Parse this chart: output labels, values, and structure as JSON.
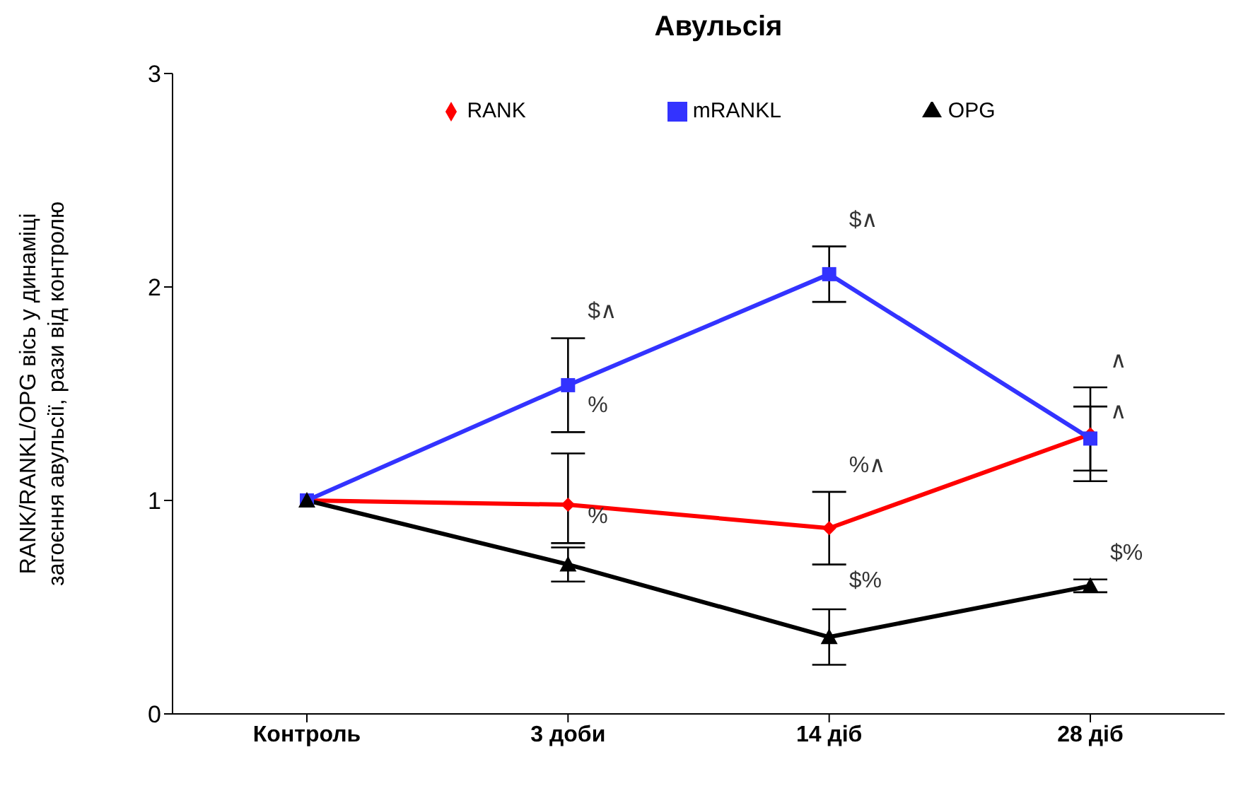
{
  "chart_data": {
    "type": "line",
    "title": "Авульсія",
    "ylabel": "RANK/RANKL/OPG  вісь у динаміці\nзагоєння авульсії, рази від контролю",
    "categories": [
      "Контроль",
      "3 доби",
      "14 діб",
      "28 діб"
    ],
    "series": [
      {
        "name": "RANK",
        "color": "#ff0000",
        "marker": "diamond",
        "values": [
          1,
          0.98,
          0.87,
          1.31
        ],
        "errors": [
          null,
          [
            0.8,
            1.22
          ],
          0.17,
          0.22
        ]
      },
      {
        "name": "mRANKL",
        "color": "#3333ff",
        "marker": "square",
        "values": [
          1,
          1.54,
          2.06,
          1.29
        ],
        "errors": [
          null,
          0.22,
          0.13,
          0.15
        ]
      },
      {
        "name": "OPG",
        "color": "#000000",
        "marker": "triangle",
        "values": [
          1,
          0.7,
          0.36,
          0.6
        ],
        "errors": [
          null,
          0.08,
          0.13,
          0.03
        ]
      }
    ],
    "ylim": [
      0,
      3
    ],
    "yticks": [
      0,
      1,
      2,
      3
    ],
    "grid": false,
    "legend": "top",
    "annotations": [
      {
        "text": "$∧",
        "x": "3 доби",
        "y": 1.76
      },
      {
        "text": "%",
        "x": "3 доби",
        "y": 1.32
      },
      {
        "text": "%",
        "x": "3 доби",
        "y": 0.8
      },
      {
        "text": "$∧",
        "x": "14 діб",
        "y": 2.19
      },
      {
        "text": "%∧",
        "x": "14 діб",
        "y": 1.04
      },
      {
        "text": "$%",
        "x": "14 діб",
        "y": 0.5
      },
      {
        "text": "∧",
        "x": "28 діб",
        "y": 1.53
      },
      {
        "text": "∧",
        "x": "28 діб",
        "y": 1.29
      },
      {
        "text": "$%",
        "x": "28 діб",
        "y": 0.63
      }
    ]
  }
}
